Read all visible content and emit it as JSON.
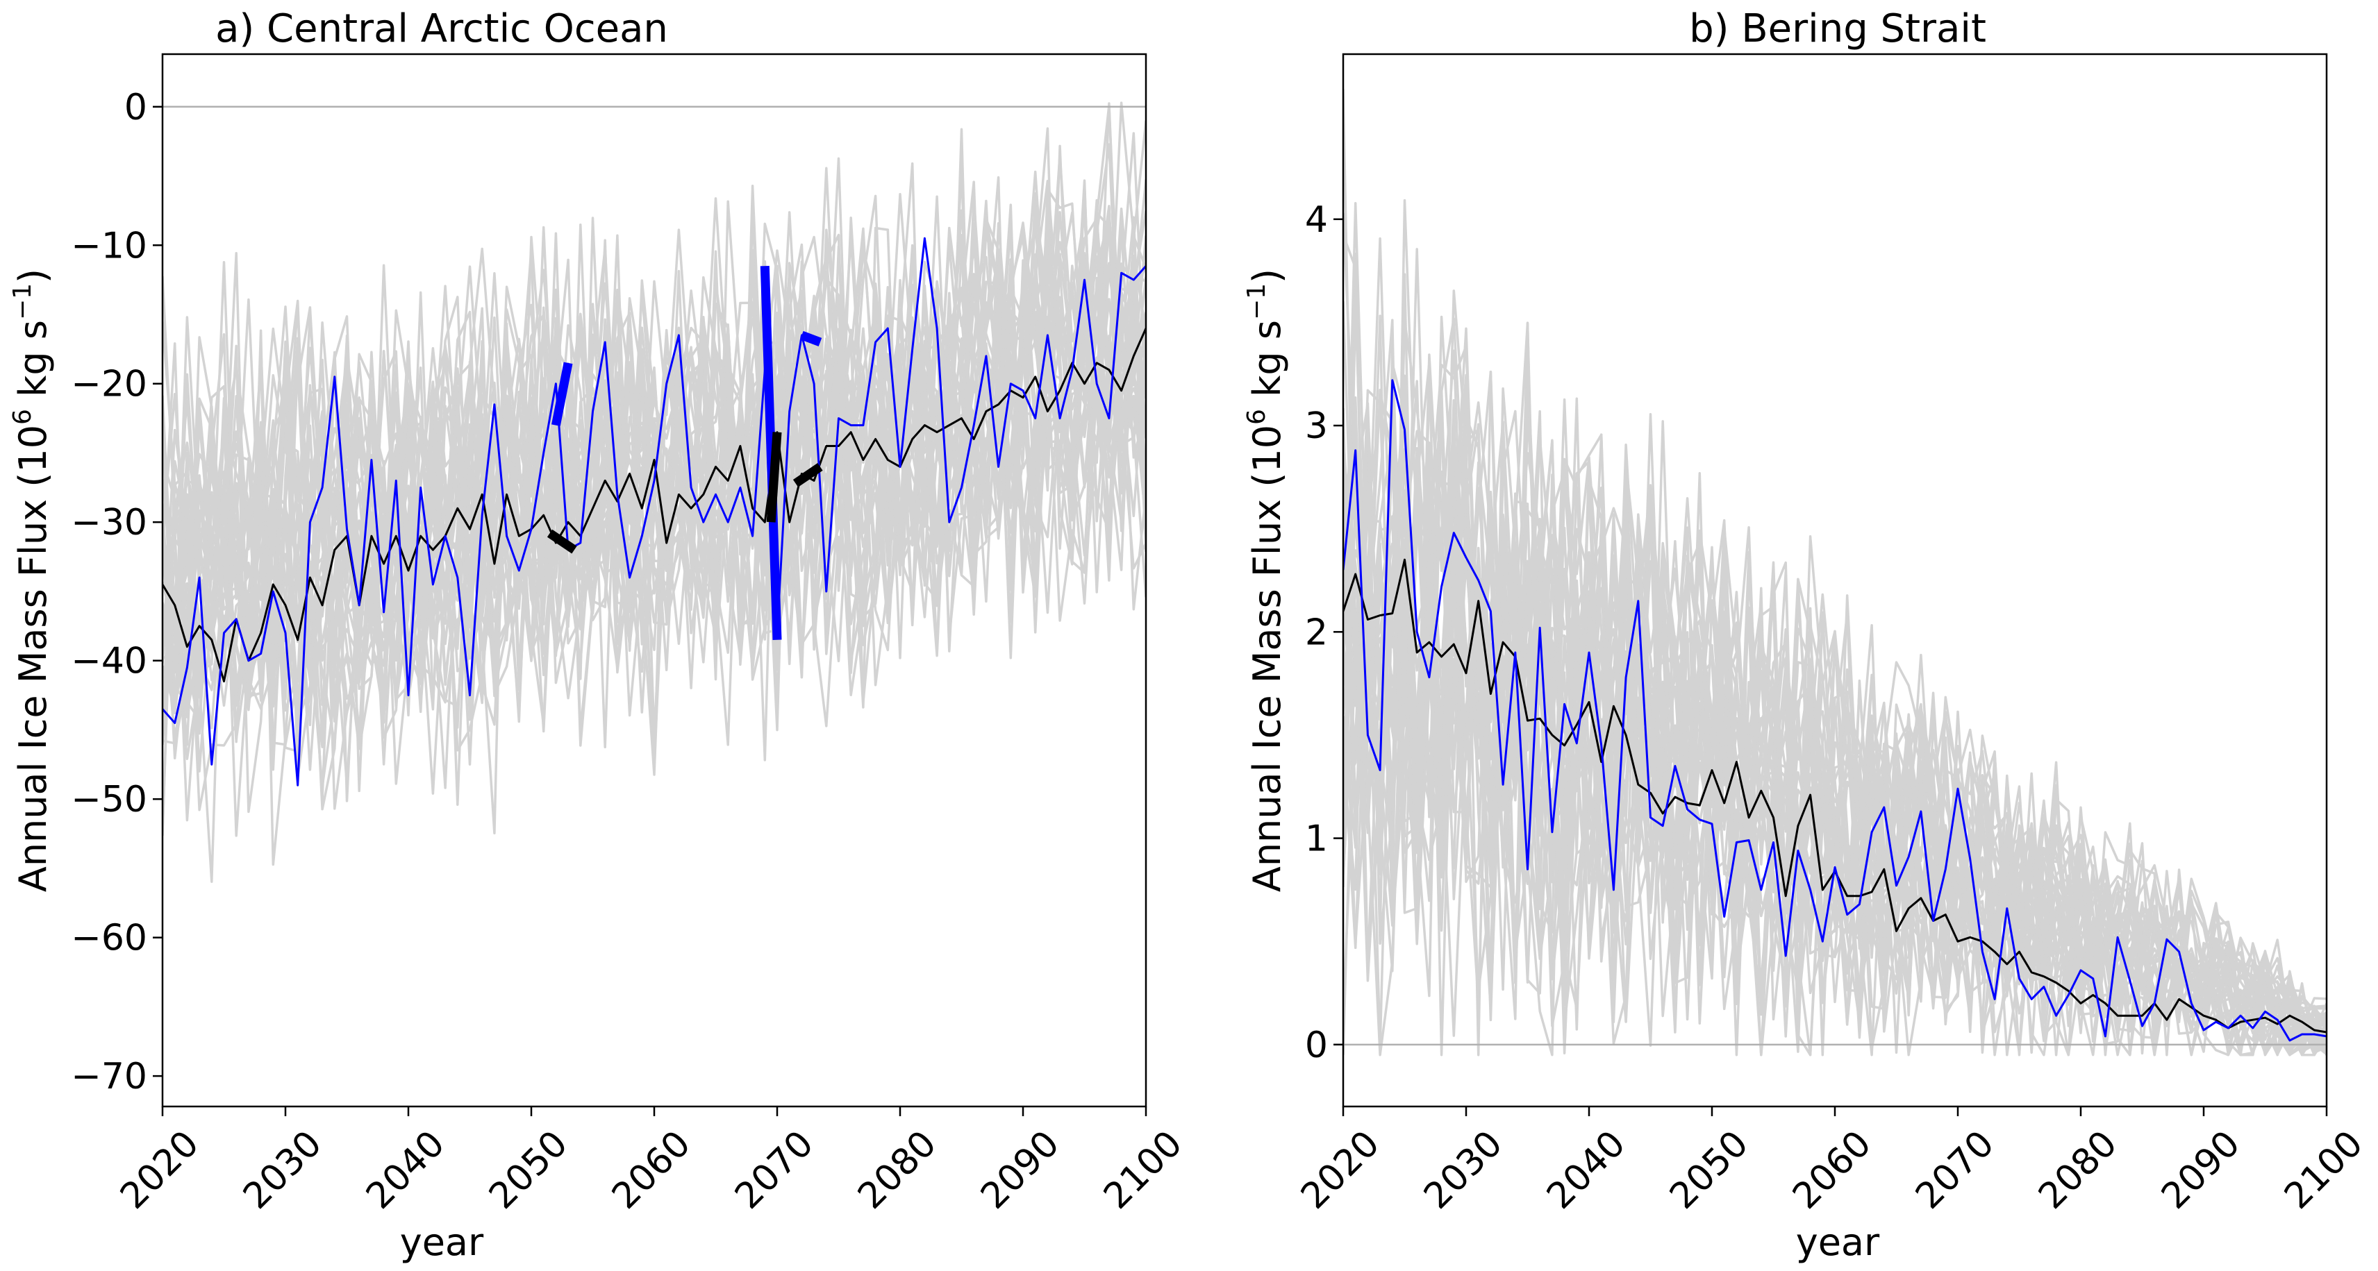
{
  "chart_data": [
    {
      "type": "line",
      "title": "a) Central Arctic Ocean",
      "xlabel": "year",
      "ylabel_main": "Annual Ice Mass Flux (10",
      "ylabel_sup1": "6",
      "ylabel_units": " kg s",
      "ylabel_sup2": "−1",
      "ylabel_close": ")",
      "xlim": [
        2020,
        2100
      ],
      "ylim": [
        -72.2,
        3.8
      ],
      "xticks": [
        2020,
        2030,
        2040,
        2050,
        2060,
        2070,
        2080,
        2090,
        2100
      ],
      "yticks": [
        0,
        -10,
        -20,
        -30,
        -40,
        -50,
        -60,
        -70
      ],
      "reference_line": 0,
      "ensemble": {
        "color": "#d3d3d3",
        "members": 40,
        "start": [
          -35,
          8
        ],
        "end": [
          -19,
          7.5
        ],
        "seed": 11
      },
      "series": [
        {
          "color": "#000000",
          "x": [
            2020,
            2021,
            2022,
            2023,
            2024,
            2025,
            2026,
            2027,
            2028,
            2029,
            2030,
            2031,
            2032,
            2033,
            2034,
            2035,
            2036,
            2037,
            2038,
            2039,
            2040,
            2041,
            2042,
            2043,
            2044,
            2045,
            2046,
            2047,
            2048,
            2049,
            2050,
            2051,
            2052,
            2053,
            2054,
            2055,
            2056,
            2057,
            2058,
            2059,
            2060,
            2061,
            2062,
            2063,
            2064,
            2065,
            2066,
            2067,
            2068,
            2069,
            2070,
            2071,
            2072,
            2073,
            2074,
            2075,
            2076,
            2077,
            2078,
            2079,
            2080,
            2081,
            2082,
            2083,
            2084,
            2085,
            2086,
            2087,
            2088,
            2089,
            2090,
            2091,
            2092,
            2093,
            2094,
            2095,
            2096,
            2097,
            2098,
            2099,
            2100
          ],
          "y": [
            -34.5,
            -36,
            -39,
            -37.5,
            -38.5,
            -41.5,
            -37,
            -40,
            -38,
            -34.5,
            -36,
            -38.5,
            -34,
            -36,
            -32,
            -31,
            -36,
            -31,
            -33,
            -31,
            -33.5,
            -31,
            -32,
            -31,
            -29,
            -30.5,
            -28,
            -33,
            -28,
            -31,
            -30.5,
            -29.5,
            -31.5,
            -30,
            -31,
            -29,
            -27,
            -28.5,
            -26.5,
            -29,
            -25.5,
            -31.5,
            -28,
            -29,
            -28,
            -26,
            -27,
            -24.5,
            -29,
            -30,
            -23.5,
            -30,
            -26.5,
            -27,
            -24.5,
            -24.5,
            -23.5,
            -25.5,
            -24,
            -25.5,
            -26,
            -24,
            -23,
            -23.5,
            -23,
            -22.5,
            -24,
            -22,
            -21.5,
            -20.5,
            -21,
            -19.5,
            -22,
            -20.5,
            -18.5,
            -20,
            -18.5,
            -19,
            -20.5,
            -18,
            -16
          ]
        },
        {
          "color": "#0000ff",
          "x": [
            2020,
            2021,
            2022,
            2023,
            2024,
            2025,
            2026,
            2027,
            2028,
            2029,
            2030,
            2031,
            2032,
            2033,
            2034,
            2035,
            2036,
            2037,
            2038,
            2039,
            2040,
            2041,
            2042,
            2043,
            2044,
            2045,
            2046,
            2047,
            2048,
            2049,
            2050,
            2051,
            2052,
            2053,
            2054,
            2055,
            2056,
            2057,
            2058,
            2059,
            2060,
            2061,
            2062,
            2063,
            2064,
            2065,
            2066,
            2067,
            2068,
            2069,
            2070,
            2071,
            2072,
            2073,
            2074,
            2075,
            2076,
            2077,
            2078,
            2079,
            2080,
            2081,
            2082,
            2083,
            2084,
            2085,
            2086,
            2087,
            2088,
            2089,
            2090,
            2091,
            2092,
            2093,
            2094,
            2095,
            2096,
            2097,
            2098,
            2099,
            2100
          ],
          "y": [
            -43.5,
            -44.5,
            -40.5,
            -34,
            -47.5,
            -38,
            -37,
            -40,
            -39.5,
            -35,
            -38,
            -49,
            -30,
            -27.5,
            -19.5,
            -30.5,
            -36,
            -25.5,
            -36.5,
            -27,
            -42.5,
            -27.5,
            -34.5,
            -31,
            -34,
            -42.5,
            -29.5,
            -21.5,
            -31,
            -33.5,
            -30.5,
            -25,
            -20,
            -32,
            -31.5,
            -22,
            -17,
            -28,
            -34,
            -31,
            -27,
            -20,
            -16.5,
            -27.5,
            -30,
            -28,
            -30,
            -27.5,
            -31,
            -19,
            -38,
            -22,
            -16.5,
            -20,
            -35,
            -22.5,
            -23,
            -23,
            -17,
            -16,
            -26,
            -17.5,
            -9.5,
            -16,
            -30,
            -27.5,
            -23,
            -18,
            -26,
            -20,
            -20.5,
            -22.5,
            -16.5,
            -22.5,
            -19,
            -12.5,
            -20,
            -22.5,
            -12,
            -12.5,
            -11.5
          ]
        }
      ],
      "markers": [
        {
          "color": "#0000ff",
          "x": [
            2052,
            2053
          ],
          "y": [
            -23,
            -18.5
          ]
        },
        {
          "color": "#0000ff",
          "x": [
            2069,
            2070
          ],
          "y": [
            -11.5,
            -38.5
          ]
        },
        {
          "color": "#0000ff",
          "x": [
            2072,
            2073.5
          ],
          "y": [
            -16.5,
            -17
          ]
        },
        {
          "color": "#000000",
          "x": [
            2051.5,
            2053.5
          ],
          "y": [
            -30.8,
            -32
          ]
        },
        {
          "color": "#000000",
          "x": [
            2069.5,
            2070
          ],
          "y": [
            -30,
            -23.5
          ]
        },
        {
          "color": "#000000",
          "x": [
            2071.5,
            2073.5
          ],
          "y": [
            -27.2,
            -26
          ]
        }
      ]
    },
    {
      "type": "line",
      "title": "b) Bering Strait",
      "xlabel": "year",
      "ylabel_main": "Annual Ice Mass Flux (10",
      "ylabel_sup1": "6",
      "ylabel_units": " kg s",
      "ylabel_sup2": "−1",
      "ylabel_close": ")",
      "xlim": [
        2020,
        2100
      ],
      "ylim": [
        -0.3,
        4.8
      ],
      "xticks": [
        2020,
        2030,
        2040,
        2050,
        2060,
        2070,
        2080,
        2090,
        2100
      ],
      "yticks": [
        0,
        1,
        2,
        3,
        4
      ],
      "reference_line": 0,
      "ensemble": {
        "color": "#d3d3d3",
        "members": 40,
        "start": [
          2.1,
          0.9
        ],
        "end": [
          0.05,
          0.09
        ],
        "seed": 29
      },
      "series": [
        {
          "color": "#000000",
          "x": [
            2020,
            2021,
            2022,
            2023,
            2024,
            2025,
            2026,
            2027,
            2028,
            2029,
            2030,
            2031,
            2032,
            2033,
            2034,
            2035,
            2036,
            2037,
            2038,
            2039,
            2040,
            2041,
            2042,
            2043,
            2044,
            2045,
            2046,
            2047,
            2048,
            2049,
            2050,
            2051,
            2052,
            2053,
            2054,
            2055,
            2056,
            2057,
            2058,
            2059,
            2060,
            2061,
            2062,
            2063,
            2064,
            2065,
            2066,
            2067,
            2068,
            2069,
            2070,
            2071,
            2072,
            2073,
            2074,
            2075,
            2076,
            2077,
            2078,
            2079,
            2080,
            2081,
            2082,
            2083,
            2084,
            2085,
            2086,
            2087,
            2088,
            2089,
            2090,
            2091,
            2092,
            2093,
            2094,
            2095,
            2096,
            2097,
            2098,
            2099,
            2100
          ],
          "y": [
            2.1,
            2.28,
            2.06,
            2.08,
            2.09,
            2.35,
            1.9,
            1.95,
            1.88,
            1.94,
            1.8,
            2.15,
            1.7,
            1.95,
            1.88,
            1.57,
            1.58,
            1.5,
            1.45,
            1.55,
            1.66,
            1.37,
            1.64,
            1.5,
            1.26,
            1.22,
            1.12,
            1.2,
            1.17,
            1.16,
            1.33,
            1.17,
            1.37,
            1.1,
            1.23,
            1.1,
            0.72,
            1.06,
            1.21,
            0.75,
            0.84,
            0.72,
            0.72,
            0.74,
            0.85,
            0.55,
            0.66,
            0.71,
            0.6,
            0.63,
            0.5,
            0.52,
            0.5,
            0.45,
            0.39,
            0.45,
            0.35,
            0.33,
            0.3,
            0.26,
            0.2,
            0.24,
            0.2,
            0.14,
            0.14,
            0.14,
            0.2,
            0.12,
            0.22,
            0.18,
            0.14,
            0.12,
            0.08,
            0.11,
            0.12,
            0.13,
            0.1,
            0.14,
            0.11,
            0.07,
            0.06
          ]
        },
        {
          "color": "#0000ff",
          "x": [
            2020,
            2021,
            2022,
            2023,
            2024,
            2025,
            2026,
            2027,
            2028,
            2029,
            2030,
            2031,
            2032,
            2033,
            2034,
            2035,
            2036,
            2037,
            2038,
            2039,
            2040,
            2041,
            2042,
            2043,
            2044,
            2045,
            2046,
            2047,
            2048,
            2049,
            2050,
            2051,
            2052,
            2053,
            2054,
            2055,
            2056,
            2057,
            2058,
            2059,
            2060,
            2061,
            2062,
            2063,
            2064,
            2065,
            2066,
            2067,
            2068,
            2069,
            2070,
            2071,
            2072,
            2073,
            2074,
            2075,
            2076,
            2077,
            2078,
            2079,
            2080,
            2081,
            2082,
            2083,
            2084,
            2085,
            2086,
            2087,
            2088,
            2089,
            2090,
            2091,
            2092,
            2093,
            2094,
            2095,
            2096,
            2097,
            2098,
            2099,
            2100
          ],
          "y": [
            2.3,
            2.88,
            1.5,
            1.33,
            3.22,
            2.98,
            2.0,
            1.78,
            2.22,
            2.48,
            2.36,
            2.25,
            2.1,
            1.26,
            1.9,
            0.85,
            2.02,
            1.03,
            1.65,
            1.46,
            1.9,
            1.45,
            0.75,
            1.78,
            2.15,
            1.1,
            1.06,
            1.35,
            1.14,
            1.09,
            1.07,
            0.62,
            0.98,
            0.99,
            0.75,
            0.98,
            0.43,
            0.94,
            0.75,
            0.5,
            0.86,
            0.63,
            0.68,
            1.03,
            1.15,
            0.77,
            0.91,
            1.13,
            0.6,
            0.85,
            1.24,
            0.9,
            0.45,
            0.22,
            0.66,
            0.32,
            0.22,
            0.28,
            0.14,
            0.24,
            0.36,
            0.32,
            0.04,
            0.52,
            0.31,
            0.09,
            0.2,
            0.51,
            0.45,
            0.2,
            0.07,
            0.11,
            0.08,
            0.14,
            0.08,
            0.16,
            0.12,
            0.02,
            0.05,
            0.05,
            0.04
          ]
        }
      ],
      "markers": []
    }
  ]
}
